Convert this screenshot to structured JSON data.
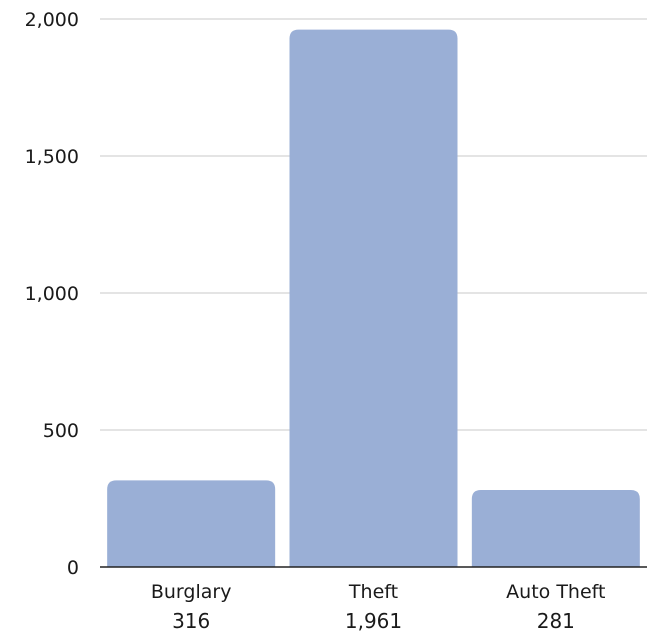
{
  "chart_data": {
    "type": "bar",
    "title": "",
    "xlabel": "",
    "ylabel": "",
    "categories": [
      "Burglary",
      "Theft",
      "Auto Theft"
    ],
    "values": [
      316,
      1961,
      281
    ],
    "value_labels": [
      "316",
      "1,961",
      "281"
    ],
    "ylim": [
      0,
      2000
    ],
    "y_ticks": [
      0,
      500,
      1000,
      1500,
      2000
    ],
    "y_tick_labels": [
      "0",
      "500",
      "1,000",
      "1,500",
      "2,000"
    ],
    "grid": true,
    "legend": "none",
    "bar_color": "#9aafd6"
  }
}
